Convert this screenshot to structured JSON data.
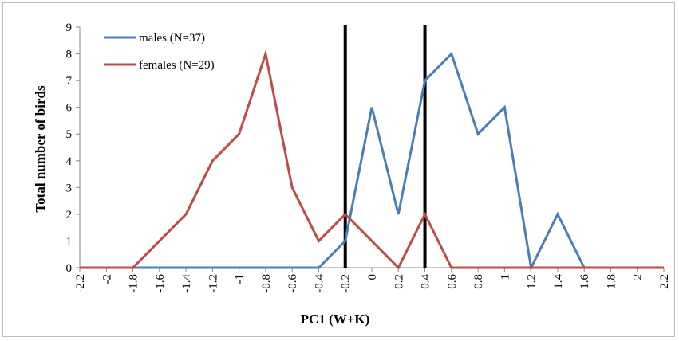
{
  "chart_data": {
    "type": "line",
    "xlabel": "PC1 (W+K)",
    "ylabel": "Total number of birds",
    "x": [
      -2.2,
      -2.0,
      -1.8,
      -1.6,
      -1.4,
      -1.2,
      -1.0,
      -0.8,
      -0.6,
      -0.4,
      -0.2,
      0.0,
      0.2,
      0.4,
      0.6,
      0.8,
      1.0,
      1.2,
      1.4,
      1.6,
      1.8,
      2.0,
      2.2
    ],
    "x_tick_labels": [
      "-2.2",
      "-2",
      "-1.8",
      "-1.6",
      "-1.4",
      "-1.2",
      "-1",
      "-0.8",
      "-0.6",
      "-0.4",
      "-0.2",
      "0",
      "0.2",
      "0.4",
      "0.6",
      "0.8",
      "1",
      "1.2",
      "1.4",
      "1.6",
      "1.8",
      "2",
      "2.2"
    ],
    "ylim": [
      0,
      9
    ],
    "y_ticks": [
      0,
      1,
      2,
      3,
      4,
      5,
      6,
      7,
      8,
      9
    ],
    "series": [
      {
        "name": "males (N=37)",
        "color": "#4a7ebb",
        "values": [
          0,
          0,
          0,
          0,
          0,
          0,
          0,
          0,
          0,
          0,
          1,
          6,
          2,
          7,
          8,
          5,
          6,
          0,
          2,
          0,
          null,
          null,
          null
        ]
      },
      {
        "name": "females (N=29)",
        "color": "#be4b48",
        "values": [
          0,
          0,
          0,
          1,
          2,
          4,
          5,
          8,
          3,
          1,
          2,
          1,
          0,
          2,
          0,
          0,
          0,
          0,
          0,
          0,
          0,
          0,
          0
        ]
      }
    ],
    "vertical_lines": [
      {
        "x": -0.2,
        "color": "#000000"
      },
      {
        "x": 0.4,
        "color": "#000000"
      }
    ],
    "legend_position": "top-left",
    "grid": false
  }
}
